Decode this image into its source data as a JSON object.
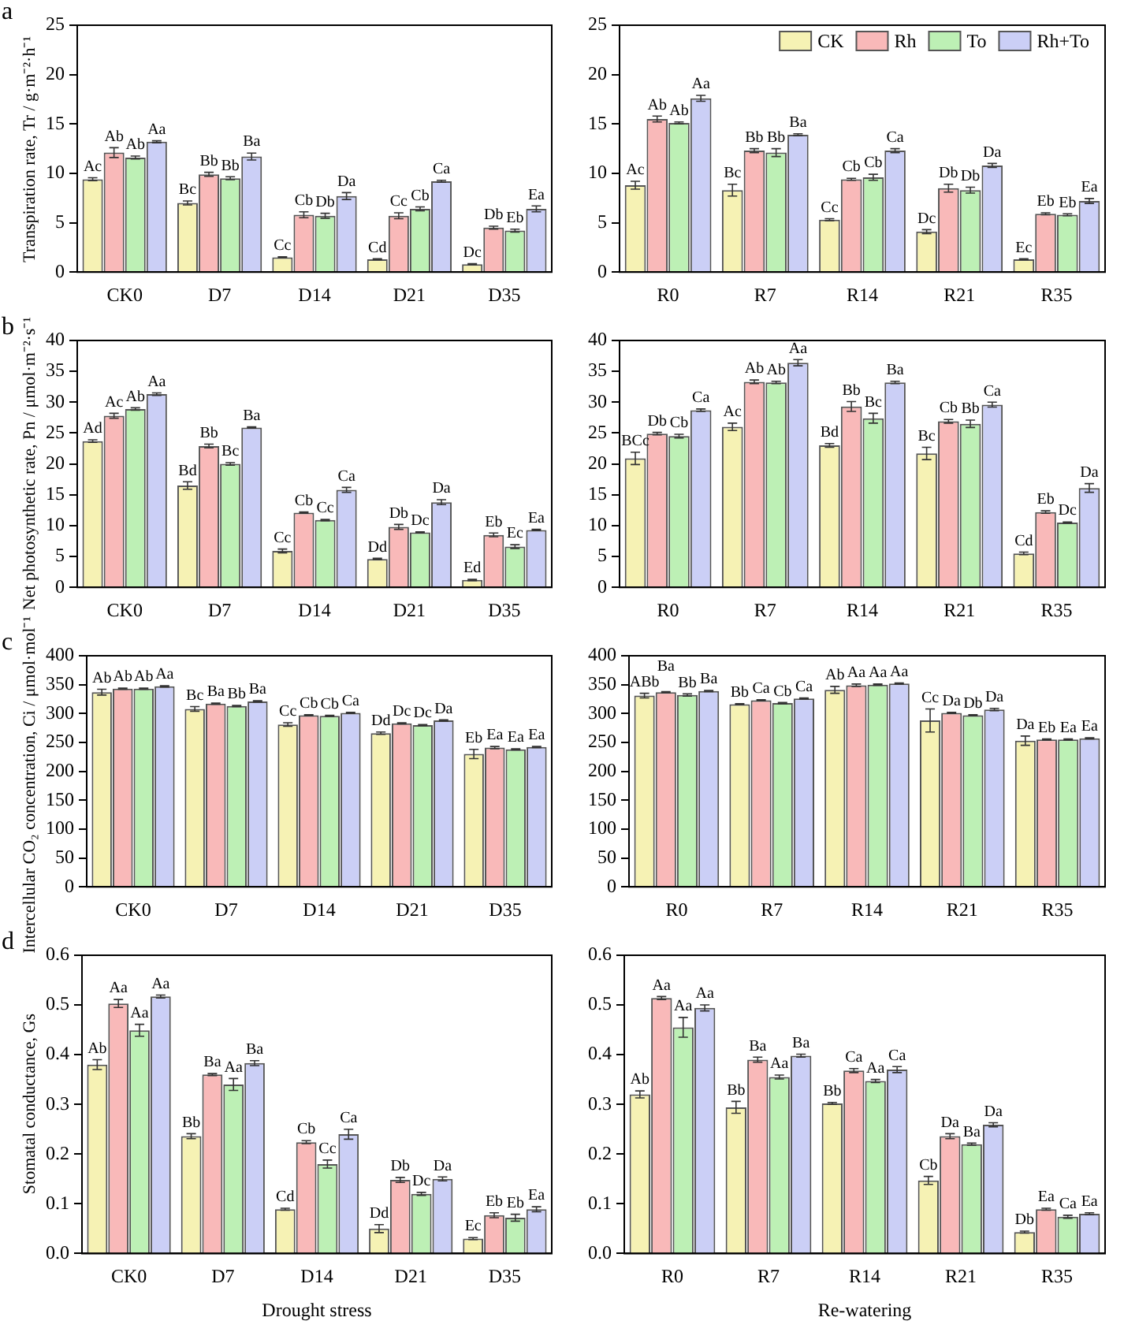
{
  "chart_data": [
    {
      "type": "bar",
      "annotations": [
        "a"
      ],
      "ylabel": "Transpiration rate, Tr / g·m⁻²·h⁻¹",
      "categories": [
        "CK0",
        "D7",
        "D14",
        "D21",
        "D35"
      ],
      "ylim": [
        0,
        25
      ],
      "yticks": [
        0,
        5,
        10,
        15,
        20,
        25
      ],
      "grid": false,
      "legend": false,
      "series": [
        {
          "color": "#f6f2b4",
          "values": [
            9.4,
            7.0,
            1.5,
            1.3,
            0.8
          ],
          "errors": [
            0.15,
            0.2,
            0.05,
            0.05,
            0.05
          ],
          "value_labels": [
            "Ac",
            "Bc",
            "Cc",
            "Cd",
            "Dc"
          ]
        },
        {
          "color": "#f9b9b9",
          "values": [
            12.1,
            9.9,
            5.8,
            5.7,
            4.5
          ],
          "errors": [
            0.5,
            0.2,
            0.3,
            0.3,
            0.15
          ],
          "value_labels": [
            "Ab",
            "Bb",
            "Cb",
            "Cc",
            "Db"
          ]
        },
        {
          "color": "#bdf0b5",
          "values": [
            11.6,
            9.5,
            5.7,
            6.4,
            4.2
          ],
          "errors": [
            0.15,
            0.15,
            0.25,
            0.2,
            0.15
          ],
          "value_labels": [
            "Ab",
            "Bb",
            "Db",
            "Cb",
            "Eb"
          ]
        },
        {
          "color": "#cbcff6",
          "values": [
            13.2,
            11.7,
            7.7,
            9.2,
            6.4
          ],
          "errors": [
            0.1,
            0.35,
            0.35,
            0.1,
            0.3
          ],
          "value_labels": [
            "Aa",
            "Ba",
            "Da",
            "Ca",
            "Ea"
          ]
        }
      ]
    },
    {
      "type": "bar",
      "categories": [
        "R0",
        "R7",
        "R14",
        "R21",
        "R35"
      ],
      "ylim": [
        0,
        25
      ],
      "yticks": [
        0,
        5,
        10,
        15,
        20,
        25
      ],
      "grid": false,
      "legend": "top right",
      "series": [
        {
          "name": "CK",
          "color": "#f6f2b4",
          "values": [
            8.8,
            8.3,
            5.3,
            4.1,
            1.3
          ],
          "errors": [
            0.4,
            0.6,
            0.1,
            0.2,
            0.05
          ],
          "value_labels": [
            "Ac",
            "Bc",
            "Cc",
            "Dc",
            "Ec"
          ]
        },
        {
          "name": "Rh",
          "color": "#f9b9b9",
          "values": [
            15.5,
            12.3,
            9.4,
            8.5,
            5.9
          ],
          "errors": [
            0.3,
            0.2,
            0.1,
            0.4,
            0.1
          ],
          "value_labels": [
            "Ab",
            "Bb",
            "Cb",
            "Db",
            "Eb"
          ]
        },
        {
          "name": "To",
          "color": "#bdf0b5",
          "values": [
            15.1,
            12.1,
            9.6,
            8.3,
            5.8
          ],
          "errors": [
            0.1,
            0.4,
            0.3,
            0.3,
            0.1
          ],
          "value_labels": [
            "Ab",
            "Bb",
            "Cb",
            "Db",
            "Eb"
          ]
        },
        {
          "name": "Rh+To",
          "color": "#cbcff6",
          "values": [
            17.6,
            13.9,
            12.3,
            10.8,
            7.2
          ],
          "errors": [
            0.3,
            0.1,
            0.2,
            0.2,
            0.25
          ],
          "value_labels": [
            "Aa",
            "Ba",
            "Ca",
            "Da",
            "Ea"
          ]
        }
      ]
    },
    {
      "type": "bar",
      "annotations": [
        "b"
      ],
      "ylabel": "Net photosynthetic rate, Pn / μmol·m⁻²·s⁻¹",
      "categories": [
        "CK0",
        "D7",
        "D14",
        "D21",
        "D35"
      ],
      "ylim": [
        0,
        40
      ],
      "yticks": [
        0,
        5,
        10,
        15,
        20,
        25,
        30,
        35,
        40
      ],
      "grid": false,
      "legend": false,
      "series": [
        {
          "color": "#f6f2b4",
          "values": [
            23.7,
            16.5,
            5.9,
            4.6,
            1.2
          ],
          "errors": [
            0.2,
            0.6,
            0.3,
            0.1,
            0.1
          ],
          "value_labels": [
            "Ad",
            "Bd",
            "Cc",
            "Dd",
            "Ed"
          ]
        },
        {
          "color": "#f9b9b9",
          "values": [
            27.8,
            22.9,
            12.1,
            9.8,
            8.5
          ],
          "errors": [
            0.4,
            0.3,
            0.1,
            0.4,
            0.3
          ],
          "value_labels": [
            "Ac",
            "Bb",
            "Cb",
            "Db",
            "Eb"
          ]
        },
        {
          "color": "#bdf0b5",
          "values": [
            28.9,
            20.0,
            10.9,
            8.9,
            6.6
          ],
          "errors": [
            0.2,
            0.2,
            0.1,
            0.1,
            0.3
          ],
          "value_labels": [
            "Ab",
            "Bc",
            "Cc",
            "Dc",
            "Ec"
          ]
        },
        {
          "color": "#cbcff6",
          "values": [
            31.3,
            25.9,
            15.8,
            13.8,
            9.3
          ],
          "errors": [
            0.2,
            0.1,
            0.4,
            0.4,
            0.1
          ],
          "value_labels": [
            "Aa",
            "Ba",
            "Ca",
            "Da",
            "Ea"
          ]
        }
      ]
    },
    {
      "type": "bar",
      "categories": [
        "R0",
        "R7",
        "R14",
        "R21",
        "R35"
      ],
      "ylim": [
        0,
        40
      ],
      "yticks": [
        0,
        5,
        10,
        15,
        20,
        25,
        30,
        35,
        40
      ],
      "grid": false,
      "legend": false,
      "series": [
        {
          "color": "#f6f2b4",
          "values": [
            20.9,
            26.0,
            23.0,
            21.7,
            5.5
          ],
          "errors": [
            1.0,
            0.6,
            0.3,
            1.0,
            0.2
          ],
          "value_labels": [
            "BCc",
            "Ac",
            "Bd",
            "Bc",
            "Cd"
          ]
        },
        {
          "color": "#f9b9b9",
          "values": [
            24.9,
            33.3,
            29.3,
            26.9,
            12.2
          ],
          "errors": [
            0.2,
            0.3,
            0.8,
            0.3,
            0.2
          ],
          "value_labels": [
            "Db",
            "Ab",
            "Bb",
            "Cb",
            "Eb"
          ]
        },
        {
          "color": "#bdf0b5",
          "values": [
            24.5,
            33.2,
            27.4,
            26.5,
            10.5
          ],
          "errors": [
            0.3,
            0.2,
            0.8,
            0.6,
            0.1
          ],
          "value_labels": [
            "Cb",
            "Ab",
            "Bc",
            "Bb",
            "Dc"
          ]
        },
        {
          "color": "#cbcff6",
          "values": [
            28.7,
            36.4,
            33.2,
            29.6,
            16.1
          ],
          "errors": [
            0.2,
            0.5,
            0.2,
            0.4,
            0.7
          ],
          "value_labels": [
            "Ca",
            "Aa",
            "Ba",
            "Ca",
            "Da"
          ]
        }
      ]
    },
    {
      "type": "bar",
      "annotations": [
        "c"
      ],
      "ylabel": "Intercellular CO₂ concentration, Ci / μmol·mol⁻¹",
      "categories": [
        "CK0",
        "D7",
        "D14",
        "D21",
        "D35"
      ],
      "ylim": [
        0,
        400
      ],
      "yticks": [
        0,
        50,
        100,
        150,
        200,
        250,
        300,
        350,
        400
      ],
      "grid": false,
      "legend": false,
      "series": [
        {
          "color": "#f6f2b4",
          "values": [
            337,
            308,
            281,
            266,
            230
          ],
          "errors": [
            5,
            4,
            3,
            2,
            8
          ],
          "value_labels": [
            "Ab",
            "Bc",
            "Cc",
            "Dd",
            "Eb"
          ]
        },
        {
          "color": "#f9b9b9",
          "values": [
            343,
            317,
            297,
            283,
            241
          ],
          "errors": [
            1,
            1,
            1,
            1,
            2
          ],
          "value_labels": [
            "Ab",
            "Ba",
            "Cb",
            "Dc",
            "Ea"
          ]
        },
        {
          "color": "#bdf0b5",
          "values": [
            343,
            313,
            296,
            280,
            238
          ],
          "errors": [
            1,
            1,
            1,
            1,
            1
          ],
          "value_labels": [
            "Ab",
            "Bb",
            "Cb",
            "Dc",
            "Ea"
          ]
        },
        {
          "color": "#cbcff6",
          "values": [
            347,
            321,
            301,
            288,
            242
          ],
          "errors": [
            1,
            1,
            1,
            1,
            1
          ],
          "value_labels": [
            "Aa",
            "Ba",
            "Ca",
            "Da",
            "Ea"
          ]
        }
      ]
    },
    {
      "type": "bar",
      "categories": [
        "R0",
        "R7",
        "R14",
        "R21",
        "R35"
      ],
      "ylim": [
        0,
        400
      ],
      "yticks": [
        0,
        50,
        100,
        150,
        200,
        250,
        300,
        350,
        400
      ],
      "grid": false,
      "legend": false,
      "series": [
        {
          "color": "#f6f2b4",
          "values": [
            331,
            316,
            341,
            288,
            253
          ],
          "errors": [
            4,
            1,
            6,
            20,
            8
          ],
          "value_labels": [
            "ABb",
            "Bb",
            "Ab",
            "Cc",
            "Da"
          ]
        },
        {
          "color": "#f9b9b9",
          "values": [
            337,
            323,
            349,
            301,
            255
          ],
          "errors": [
            1,
            1,
            2,
            1,
            1
          ],
          "value_labels": [
            "Ba",
            "Ca",
            "Aa",
            "Da",
            "Eb"
          ]
        },
        {
          "color": "#bdf0b5",
          "values": [
            332,
            318,
            350,
            297,
            255
          ],
          "errors": [
            2,
            1,
            1,
            1,
            1
          ],
          "value_labels": [
            "Bb",
            "Cb",
            "Aa",
            "Db",
            "Ea"
          ]
        },
        {
          "color": "#cbcff6",
          "values": [
            339,
            326,
            352,
            307,
            257
          ],
          "errors": [
            1,
            1,
            1,
            2,
            1
          ],
          "value_labels": [
            "Ba",
            "Ca",
            "Aa",
            "Da",
            "Ea"
          ]
        }
      ]
    },
    {
      "type": "bar",
      "annotations": [
        "d"
      ],
      "ylabel": "Stomatal conductance, Gs",
      "xlabel": "Drought stress",
      "categories": [
        "CK0",
        "D7",
        "D14",
        "D21",
        "D35"
      ],
      "ylim": [
        0,
        0.6
      ],
      "yticks": [
        {
          "value": 0,
          "label": "0.0"
        },
        0.1,
        0.2,
        0.3,
        0.4,
        0.5,
        0.6
      ],
      "grid": false,
      "legend": false,
      "series": [
        {
          "color": "#f6f2b4",
          "values": [
            0.38,
            0.236,
            0.089,
            0.05,
            0.03
          ],
          "errors": [
            0.01,
            0.005,
            0.002,
            0.008,
            0.002
          ],
          "value_labels": [
            "Ab",
            "Bb",
            "Cd",
            "Dd",
            "Ec"
          ]
        },
        {
          "color": "#f9b9b9",
          "values": [
            0.503,
            0.36,
            0.224,
            0.148,
            0.077
          ],
          "errors": [
            0.008,
            0.002,
            0.003,
            0.005,
            0.005
          ],
          "value_labels": [
            "Aa",
            "Ba",
            "Cb",
            "Db",
            "Eb"
          ]
        },
        {
          "color": "#bdf0b5",
          "values": [
            0.449,
            0.34,
            0.18,
            0.12,
            0.072
          ],
          "errors": [
            0.012,
            0.012,
            0.008,
            0.003,
            0.007
          ],
          "value_labels": [
            "Aa",
            "Aa",
            "Cc",
            "Dc",
            "Eb"
          ]
        },
        {
          "color": "#cbcff6",
          "values": [
            0.517,
            0.383,
            0.24,
            0.15,
            0.089
          ],
          "errors": [
            0.003,
            0.005,
            0.01,
            0.004,
            0.005
          ],
          "value_labels": [
            "Aa",
            "Ba",
            "Ca",
            "Da",
            "Ea"
          ]
        }
      ]
    },
    {
      "type": "bar",
      "xlabel": "Re-watering",
      "categories": [
        "R0",
        "R7",
        "R14",
        "R21",
        "R35"
      ],
      "ylim": [
        0,
        0.6
      ],
      "yticks": [
        {
          "value": 0,
          "label": "0.0"
        },
        0.1,
        0.2,
        0.3,
        0.4,
        0.5,
        0.6
      ],
      "grid": false,
      "legend": false,
      "series": [
        {
          "color": "#f6f2b4",
          "values": [
            0.32,
            0.294,
            0.302,
            0.147,
            0.043
          ],
          "errors": [
            0.007,
            0.012,
            0.002,
            0.008,
            0.002
          ],
          "value_labels": [
            "Ab",
            "Bb",
            "Bb",
            "Cb",
            "Db"
          ]
        },
        {
          "color": "#f9b9b9",
          "values": [
            0.514,
            0.39,
            0.368,
            0.236,
            0.089
          ],
          "errors": [
            0.003,
            0.005,
            0.004,
            0.005,
            0.002
          ],
          "value_labels": [
            "Aa",
            "Ba",
            "Ca",
            "Da",
            "Ea"
          ]
        },
        {
          "color": "#bdf0b5",
          "values": [
            0.455,
            0.355,
            0.347,
            0.22,
            0.074
          ],
          "errors": [
            0.02,
            0.004,
            0.003,
            0.002,
            0.003
          ],
          "value_labels": [
            "Aa",
            "Aa",
            "Aa",
            "Ba",
            "Ca"
          ]
        },
        {
          "color": "#cbcff6",
          "values": [
            0.494,
            0.398,
            0.37,
            0.259,
            0.08
          ],
          "errors": [
            0.006,
            0.003,
            0.006,
            0.004,
            0.002
          ],
          "value_labels": [
            "Aa",
            "Ba",
            "Ca",
            "Da",
            "Ea"
          ]
        }
      ]
    }
  ]
}
